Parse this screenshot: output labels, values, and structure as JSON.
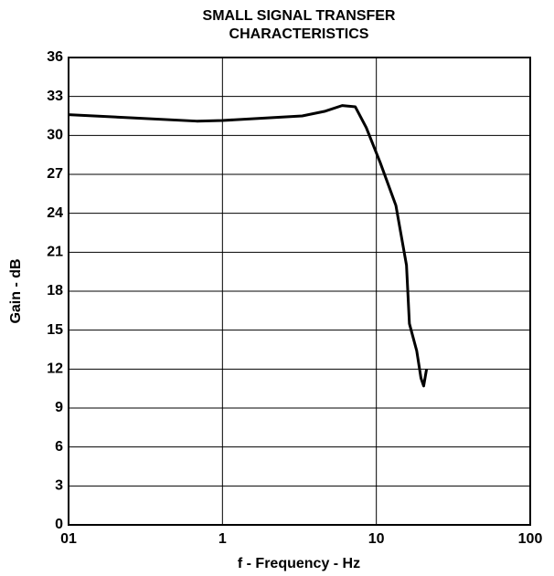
{
  "chart_data": {
    "type": "line",
    "title": [
      "SMALL SIGNAL TRANSFER",
      "CHARACTERISTICS"
    ],
    "x_label": "f - Frequency - Hz",
    "y_label": "Gain - dB",
    "x": [
      0.1,
      0.68,
      1,
      3.3,
      4.6,
      6,
      7.3,
      8.6,
      10.6,
      13.4,
      15.7,
      16.4,
      18.3,
      19.5,
      20.3,
      21.2
    ],
    "series": [
      {
        "name": "Gain",
        "color": "#000000",
        "values": [
          31.6,
          31.1,
          31.15,
          31.5,
          31.85,
          32.3,
          32.2,
          30.6,
          27.9,
          24.6,
          20,
          15.5,
          13.4,
          11.3,
          10.7,
          12
        ]
      }
    ],
    "xlim": [
      0.1,
      100
    ],
    "xticks": [
      {
        "value": 0.1,
        "label": "01"
      },
      1,
      10,
      100
    ],
    "log_x": true,
    "ylim": [
      0,
      36
    ],
    "yticks": [
      0,
      3,
      6,
      9,
      12,
      15,
      18,
      21,
      24,
      27,
      30,
      33,
      36
    ],
    "grid": true
  }
}
